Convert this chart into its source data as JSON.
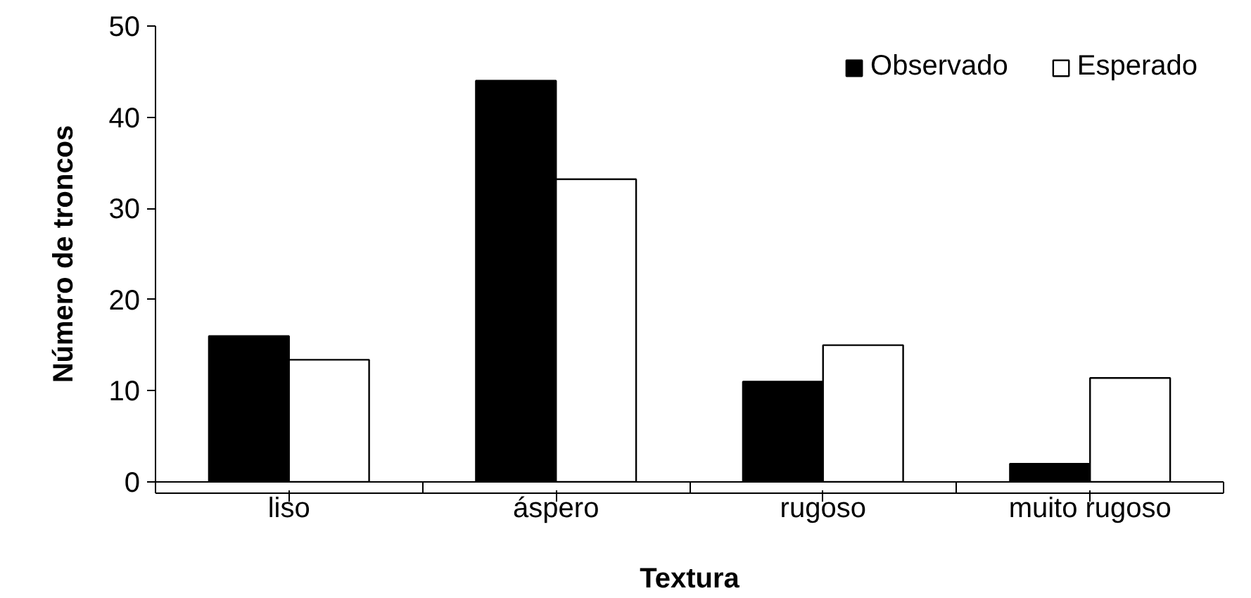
{
  "chart_data": {
    "type": "bar",
    "xlabel": "Textura",
    "ylabel": "Número de troncos",
    "categories": [
      "liso",
      "áspero",
      "rugoso",
      "muito rugoso"
    ],
    "series": [
      {
        "name": "Observado",
        "color": "#000000",
        "values": [
          16,
          44,
          11,
          2
        ]
      },
      {
        "name": "Esperado",
        "color": "#ffffff",
        "values": [
          13.4,
          33.2,
          15.0,
          11.4
        ]
      }
    ],
    "ylim": [
      0,
      50
    ],
    "yticks": [
      0,
      10,
      20,
      30,
      40,
      50
    ],
    "grid": false,
    "legend": "top right"
  }
}
